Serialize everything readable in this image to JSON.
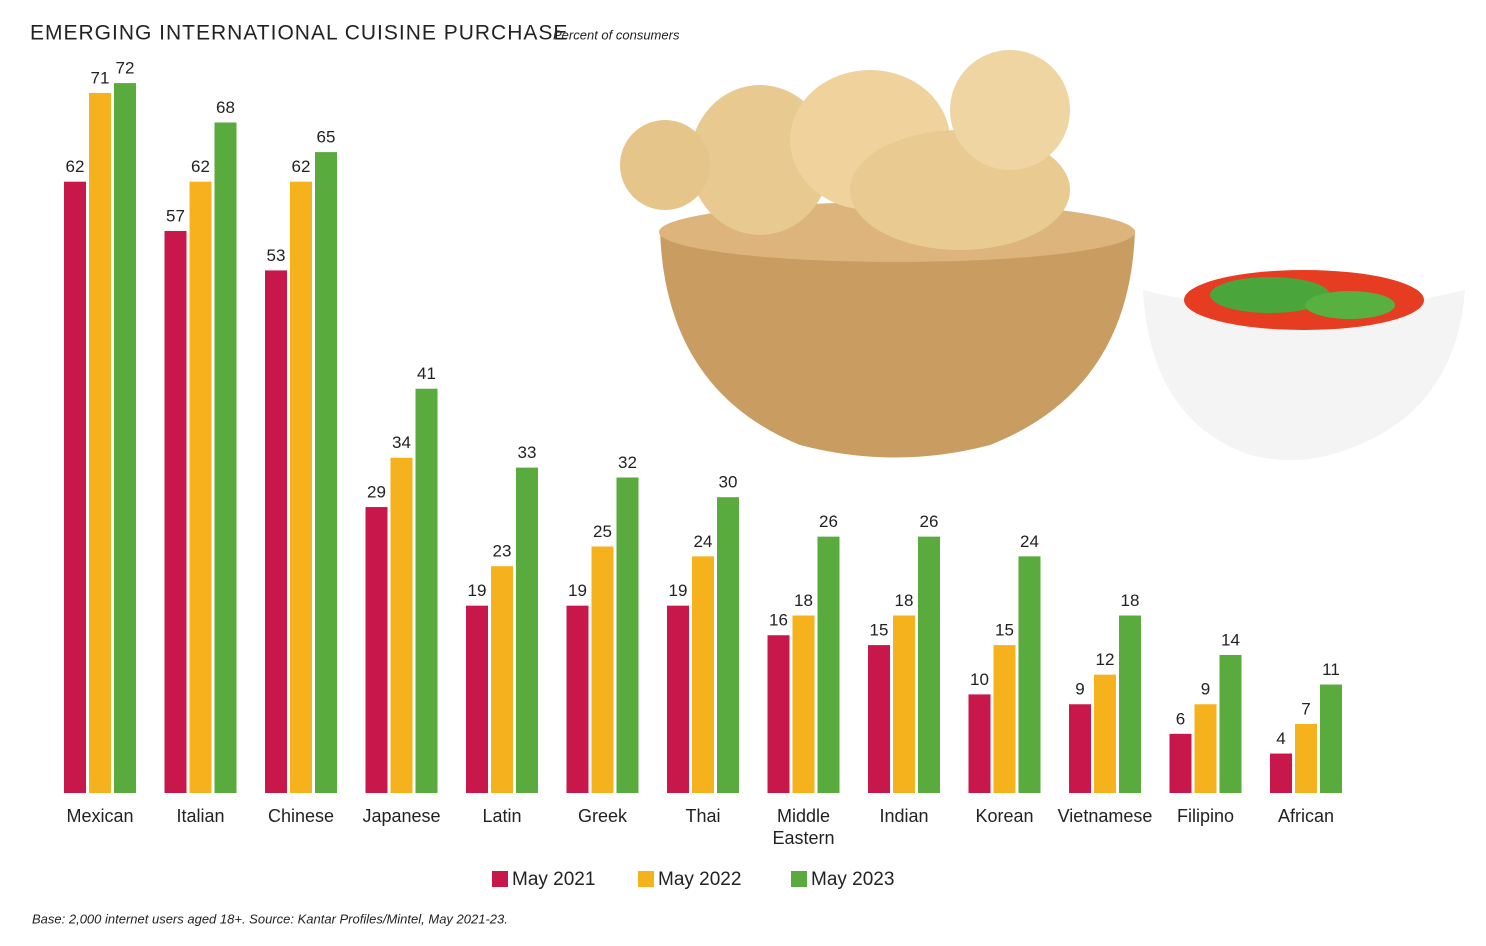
{
  "chart_data": {
    "type": "bar",
    "title": "EMERGING INTERNATIONAL CUISINE PURCHASE",
    "subtitle": "Percent of consumers",
    "footnote": "Base: 2,000 internet users aged 18+. Source: Kantar Profiles/Mintel, May 2021-23.",
    "categories": [
      "Mexican",
      "Italian",
      "Chinese",
      "Japanese",
      "Latin",
      "Greek",
      "Thai",
      "Middle Eastern",
      "Indian",
      "Korean",
      "Vietnamese",
      "Filipino",
      "African"
    ],
    "series": [
      {
        "name": "May 2021",
        "color": "#c8174a",
        "values": [
          62,
          57,
          53,
          29,
          19,
          19,
          19,
          16,
          15,
          10,
          9,
          6,
          4
        ]
      },
      {
        "name": "May 2022",
        "color": "#f5b21c",
        "values": [
          71,
          62,
          62,
          34,
          23,
          25,
          24,
          18,
          18,
          15,
          12,
          9,
          7
        ]
      },
      {
        "name": "May 2023",
        "color": "#5aab3e",
        "values": [
          72,
          68,
          65,
          41,
          33,
          32,
          30,
          26,
          26,
          24,
          18,
          14,
          11
        ]
      }
    ]
  }
}
